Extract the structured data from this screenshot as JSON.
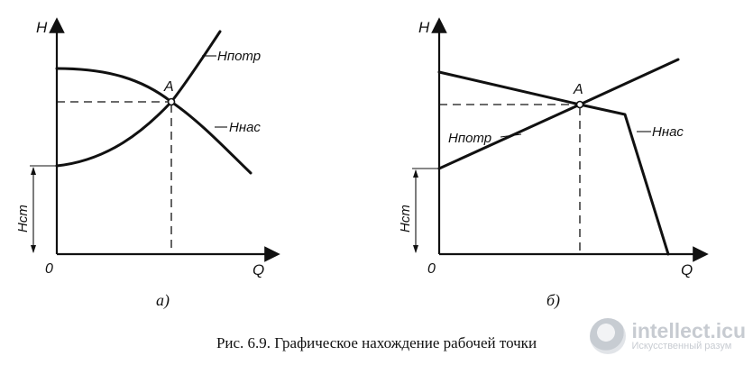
{
  "diagram_a": {
    "y_axis": "H",
    "x_axis": "Q",
    "origin": "0",
    "point": "A",
    "curve_required": "Hпотр",
    "curve_pump": "Hнас",
    "static_head": "Hст",
    "sublabel": "а)"
  },
  "diagram_b": {
    "y_axis": "H",
    "x_axis": "Q",
    "origin": "0",
    "point": "A",
    "curve_required": "Hпотр",
    "curve_pump": "Hнас",
    "static_head": "Hст",
    "sublabel": "б)"
  },
  "caption": "Рис. 6.9. Графическое нахождение рабочей точки",
  "watermark": {
    "site": "intellect.icu",
    "tagline": "Искусственный разум"
  }
}
